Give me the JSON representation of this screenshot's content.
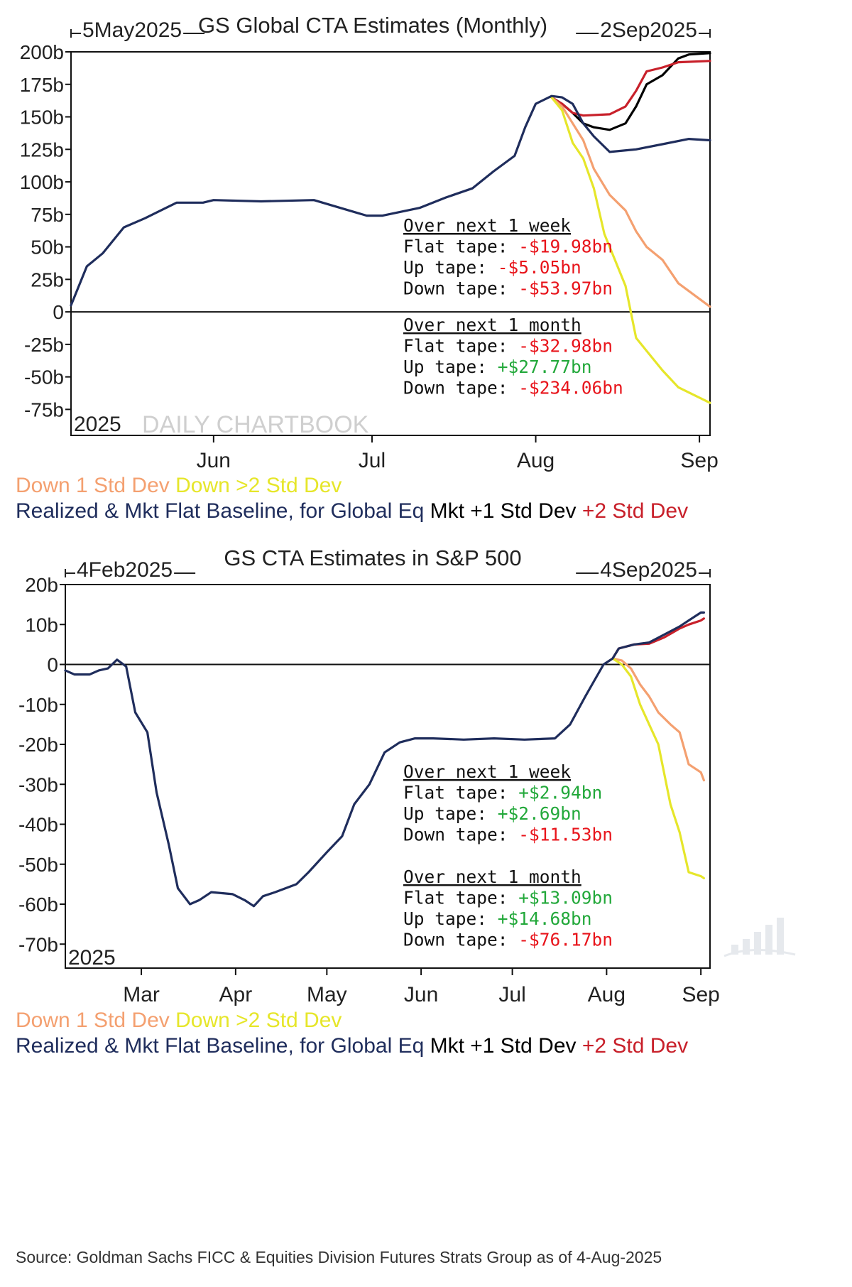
{
  "colors": {
    "baseline": "#1f2d5c",
    "plus1": "#000000",
    "plus2": "#c8202a",
    "down1": "#f4a070",
    "down2": "#e6e62a",
    "negative_text": "#e8141b",
    "positive_text": "#22a83a"
  },
  "legend_items": [
    {
      "text": "Down 1 Std Dev",
      "color": "#f4a070"
    },
    {
      "text": "Down >2 Std Dev",
      "color": "#e6e62a"
    },
    {
      "text": "Realized & Mkt Flat Baseline, for Global Eq",
      "color": "#1f2d5c"
    },
    {
      "text": "Mkt +1 Std Dev",
      "color": "#000000"
    },
    {
      "text": "+2 Std Dev",
      "color": "#c8202a"
    }
  ],
  "source": "Source: Goldman Sachs FICC & Equities Division Futures Strats Group as of 4-Aug-2025",
  "chart_data": [
    {
      "type": "line",
      "title": "GS Global CTA Estimates (Monthly)",
      "range_start": "5May2025",
      "range_end": "2Sep2025",
      "year_label": "2025",
      "watermark": "DAILY CHARTBOOK",
      "ylim": [
        -95,
        200
      ],
      "yticks": [
        200,
        175,
        150,
        125,
        100,
        75,
        50,
        25,
        0,
        -25,
        -50,
        -75
      ],
      "ytick_labels": [
        "200b",
        "175b",
        "150b",
        "125b",
        "100b",
        "75b",
        "50b",
        "25b",
        "0",
        "-25b",
        "-50b",
        "-75b"
      ],
      "x_start": "2025-05-05",
      "x_end": "2025-09-03",
      "xticks": [
        {
          "date": "2025-06-01",
          "label": "Jun"
        },
        {
          "date": "2025-07-01",
          "label": "Jul"
        },
        {
          "date": "2025-08-01",
          "label": "Aug"
        },
        {
          "date": "2025-09-01",
          "label": "Sep"
        }
      ],
      "series": [
        {
          "name": "Realized & Mkt Flat Baseline, for Global Eq",
          "color": "#1f2d5c",
          "x": [
            "2025-05-05",
            "2025-05-08",
            "2025-05-11",
            "2025-05-15",
            "2025-05-19",
            "2025-05-22",
            "2025-05-25",
            "2025-05-30",
            "2025-06-01",
            "2025-06-10",
            "2025-06-20",
            "2025-06-25",
            "2025-06-30",
            "2025-07-03",
            "2025-07-10",
            "2025-07-15",
            "2025-07-20",
            "2025-07-24",
            "2025-07-28",
            "2025-07-30",
            "2025-08-01",
            "2025-08-04",
            "2025-08-06",
            "2025-08-08",
            "2025-08-10",
            "2025-08-12",
            "2025-08-15",
            "2025-08-20",
            "2025-08-25",
            "2025-08-30",
            "2025-09-03"
          ],
          "y": [
            5,
            35,
            45,
            65,
            72,
            78,
            84,
            84,
            86,
            85,
            86,
            80,
            74,
            74,
            80,
            88,
            95,
            108,
            120,
            142,
            160,
            166,
            165,
            160,
            145,
            135,
            123,
            125,
            129,
            133,
            132
          ]
        },
        {
          "name": "Mkt +1 Std Dev",
          "color": "#000000",
          "x": [
            "2025-08-04",
            "2025-08-06",
            "2025-08-08",
            "2025-08-10",
            "2025-08-12",
            "2025-08-15",
            "2025-08-18",
            "2025-08-20",
            "2025-08-22",
            "2025-08-25",
            "2025-08-28",
            "2025-08-30",
            "2025-09-03"
          ],
          "y": [
            165,
            160,
            153,
            145,
            142,
            140,
            145,
            158,
            175,
            182,
            195,
            198,
            199
          ]
        },
        {
          "name": "+2 Std Dev",
          "color": "#c8202a",
          "x": [
            "2025-08-04",
            "2025-08-06",
            "2025-08-08",
            "2025-08-10",
            "2025-08-15",
            "2025-08-18",
            "2025-08-20",
            "2025-08-22",
            "2025-08-25",
            "2025-08-28",
            "2025-09-03"
          ],
          "y": [
            165,
            160,
            153,
            151,
            152,
            158,
            170,
            185,
            188,
            192,
            193
          ]
        },
        {
          "name": "Down 1 Std Dev",
          "color": "#f4a070",
          "x": [
            "2025-08-04",
            "2025-08-06",
            "2025-08-08",
            "2025-08-10",
            "2025-08-12",
            "2025-08-15",
            "2025-08-18",
            "2025-08-20",
            "2025-08-22",
            "2025-08-25",
            "2025-08-28",
            "2025-09-03"
          ],
          "y": [
            165,
            158,
            145,
            132,
            110,
            90,
            78,
            62,
            50,
            40,
            22,
            4
          ]
        },
        {
          "name": "Down >2 Std Dev",
          "color": "#e6e62a",
          "x": [
            "2025-08-04",
            "2025-08-06",
            "2025-08-08",
            "2025-08-10",
            "2025-08-12",
            "2025-08-14",
            "2025-08-16",
            "2025-08-18",
            "2025-08-20",
            "2025-08-22",
            "2025-08-25",
            "2025-08-28",
            "2025-09-03"
          ],
          "y": [
            165,
            155,
            130,
            118,
            95,
            60,
            40,
            20,
            -20,
            -30,
            -45,
            -58,
            -70
          ]
        }
      ],
      "annotations": {
        "week_header": "Over next 1 week",
        "week": [
          {
            "label": "Flat tape: ",
            "value": "-$19.98bn",
            "sign": "neg"
          },
          {
            "label": "Up tape: ",
            "value": "-$5.05bn",
            "sign": "neg"
          },
          {
            "label": "Down tape: ",
            "value": "-$53.97bn",
            "sign": "neg"
          }
        ],
        "month_header": "Over next 1 month",
        "month": [
          {
            "label": "Flat tape: ",
            "value": "-$32.98bn",
            "sign": "neg"
          },
          {
            "label": "Up tape: ",
            "value": "+$27.77bn",
            "sign": "pos"
          },
          {
            "label": "Down tape: ",
            "value": "-$234.06bn",
            "sign": "neg"
          }
        ]
      }
    },
    {
      "type": "line",
      "title": "GS CTA Estimates in S&P 500",
      "range_start": "4Feb2025",
      "range_end": "4Sep2025",
      "year_label": "2025",
      "ylim": [
        -76,
        20
      ],
      "yticks": [
        20,
        10,
        0,
        -10,
        -20,
        -30,
        -40,
        -50,
        -60,
        -70
      ],
      "ytick_labels": [
        "20b",
        "10b",
        "0",
        "-10b",
        "-20b",
        "-30b",
        "-40b",
        "-50b",
        "-60b",
        "-70b"
      ],
      "x_start": "2025-02-04",
      "x_end": "2025-09-04",
      "xticks": [
        {
          "date": "2025-03-01",
          "label": "Mar"
        },
        {
          "date": "2025-04-01",
          "label": "Apr"
        },
        {
          "date": "2025-05-01",
          "label": "May"
        },
        {
          "date": "2025-06-01",
          "label": "Jun"
        },
        {
          "date": "2025-07-01",
          "label": "Jul"
        },
        {
          "date": "2025-08-01",
          "label": "Aug"
        },
        {
          "date": "2025-09-01",
          "label": "Sep"
        }
      ],
      "series": [
        {
          "name": "Realized & Mkt Flat Baseline, for Global Eq",
          "color": "#1f2d5c",
          "x": [
            "2025-02-04",
            "2025-02-07",
            "2025-02-12",
            "2025-02-15",
            "2025-02-18",
            "2025-02-21",
            "2025-02-24",
            "2025-02-27",
            "2025-03-03",
            "2025-03-06",
            "2025-03-10",
            "2025-03-13",
            "2025-03-17",
            "2025-03-20",
            "2025-03-24",
            "2025-03-31",
            "2025-04-04",
            "2025-04-07",
            "2025-04-10",
            "2025-04-14",
            "2025-04-21",
            "2025-04-25",
            "2025-05-01",
            "2025-05-06",
            "2025-05-10",
            "2025-05-15",
            "2025-05-20",
            "2025-05-25",
            "2025-05-30",
            "2025-06-05",
            "2025-06-15",
            "2025-06-25",
            "2025-07-05",
            "2025-07-15",
            "2025-07-20",
            "2025-07-25",
            "2025-07-28",
            "2025-07-31",
            "2025-08-03",
            "2025-08-05",
            "2025-08-10",
            "2025-08-15",
            "2025-08-20",
            "2025-08-25",
            "2025-08-28",
            "2025-09-01",
            "2025-09-02"
          ],
          "y": [
            -1.5,
            -2.5,
            -2.5,
            -1.5,
            -1.0,
            1.2,
            -0.5,
            -12,
            -17,
            -32,
            -45,
            -56,
            -60,
            -59,
            -57,
            -57.5,
            -59,
            -60.5,
            -58,
            -57,
            -55,
            -52,
            -47,
            -43,
            -35,
            -30,
            -22,
            -19.5,
            -18.5,
            -18.5,
            -18.8,
            -18.5,
            -18.8,
            -18.5,
            -15,
            -8,
            -4,
            0,
            1.5,
            4,
            5,
            5.5,
            7.5,
            9.5,
            11,
            13,
            13
          ]
        },
        {
          "name": "+2 Std Dev",
          "color": "#c8202a",
          "x": [
            "2025-08-03",
            "2025-08-05",
            "2025-08-10",
            "2025-08-15",
            "2025-08-20",
            "2025-08-25",
            "2025-08-28",
            "2025-09-01",
            "2025-09-02"
          ],
          "y": [
            1.5,
            4,
            5,
            5.2,
            6.8,
            9,
            10,
            11,
            11.5
          ]
        },
        {
          "name": "Down 1 Std Dev",
          "color": "#f4a070",
          "x": [
            "2025-08-03",
            "2025-08-06",
            "2025-08-09",
            "2025-08-12",
            "2025-08-15",
            "2025-08-18",
            "2025-08-22",
            "2025-08-25",
            "2025-08-28",
            "2025-09-01",
            "2025-09-02"
          ],
          "y": [
            1.5,
            1,
            -1,
            -5,
            -8,
            -12,
            -15,
            -17,
            -25,
            -27,
            -29
          ]
        },
        {
          "name": "Down >2 Std Dev",
          "color": "#e6e62a",
          "x": [
            "2025-08-03",
            "2025-08-06",
            "2025-08-09",
            "2025-08-12",
            "2025-08-15",
            "2025-08-18",
            "2025-08-22",
            "2025-08-25",
            "2025-08-28",
            "2025-09-01",
            "2025-09-02"
          ],
          "y": [
            1.5,
            0,
            -3,
            -10,
            -15,
            -20,
            -35,
            -42,
            -52,
            -53,
            -53.5
          ]
        }
      ],
      "annotations": {
        "week_header": "Over next 1 week",
        "week": [
          {
            "label": "Flat tape: ",
            "value": "+$2.94bn",
            "sign": "pos"
          },
          {
            "label": "Up tape: ",
            "value": "+$2.69bn",
            "sign": "pos"
          },
          {
            "label": "Down tape: ",
            "value": "-$11.53bn",
            "sign": "neg"
          }
        ],
        "month_header": "Over next 1 month",
        "month": [
          {
            "label": "Flat tape: ",
            "value": "+$13.09bn",
            "sign": "pos"
          },
          {
            "label": "Up tape: ",
            "value": "+$14.68bn",
            "sign": "pos"
          },
          {
            "label": "Down tape: ",
            "value": "-$76.17bn",
            "sign": "neg"
          }
        ]
      }
    }
  ]
}
